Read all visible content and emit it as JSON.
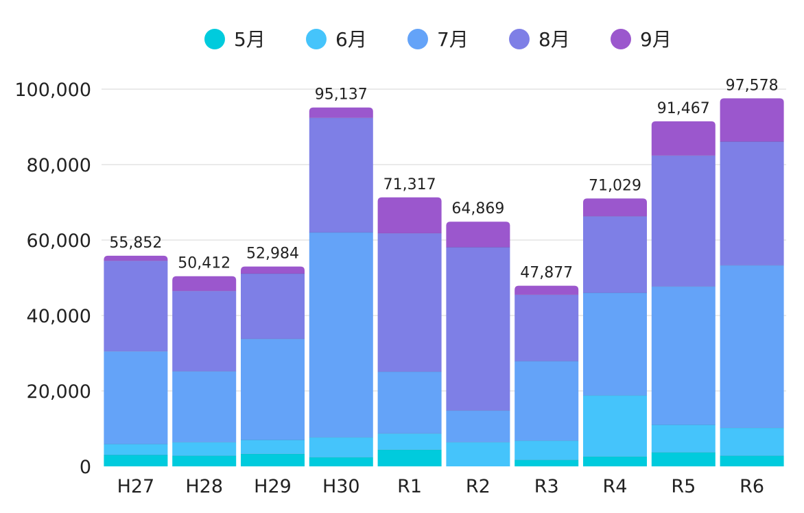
{
  "chart_data": {
    "type": "bar",
    "stacked": true,
    "categories": [
      "H27",
      "H28",
      "H29",
      "H30",
      "R1",
      "R2",
      "R3",
      "R4",
      "R5",
      "R6"
    ],
    "series": [
      {
        "name": "5月",
        "color": "#00CBDD",
        "values": [
          3000,
          2800,
          3300,
          2400,
          4400,
          0,
          1700,
          2600,
          3700,
          2800
        ]
      },
      {
        "name": "6月",
        "color": "#45C4FB",
        "values": [
          2900,
          3600,
          3700,
          5300,
          4300,
          6400,
          5100,
          16200,
          7300,
          7400
        ]
      },
      {
        "name": "7月",
        "color": "#64A3F8",
        "values": [
          24600,
          18800,
          26800,
          54300,
          16400,
          8400,
          21100,
          27200,
          36700,
          43100
        ]
      },
      {
        "name": "8月",
        "color": "#7E7FE6",
        "values": [
          24000,
          21300,
          17300,
          30400,
          36700,
          43300,
          17600,
          20300,
          34700,
          32800
        ]
      },
      {
        "name": "9月",
        "color": "#9B57CD",
        "values": [
          1352,
          3912,
          1884,
          2737,
          9517,
          6769,
          2377,
          4729,
          9067,
          11478
        ]
      }
    ],
    "totals": [
      "55,852",
      "50,412",
      "52,984",
      "95,137",
      "71,317",
      "64,869",
      "47,877",
      "71,029",
      "91,467",
      "97,578"
    ],
    "yticks": [
      "0",
      "20,000",
      "40,000",
      "60,000",
      "80,000",
      "100,000"
    ],
    "ylim": [
      0,
      100000
    ],
    "legend_position": "top-center",
    "grid": true,
    "title": "",
    "xlabel": "",
    "ylabel": ""
  }
}
